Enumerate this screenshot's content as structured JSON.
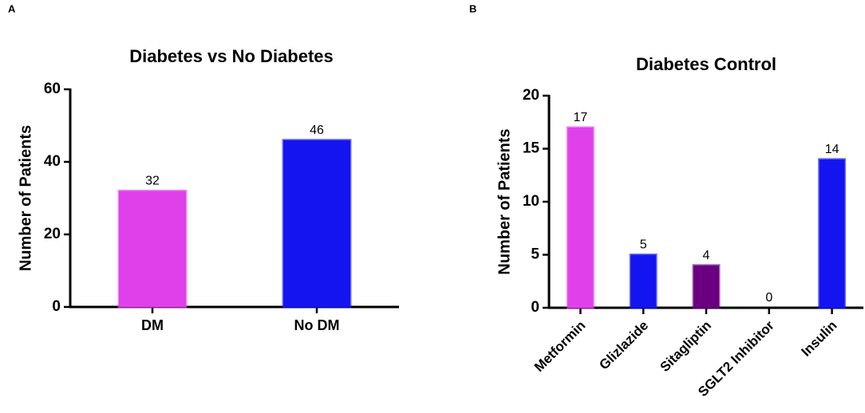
{
  "chart_data": [
    {
      "type": "bar",
      "panel_label": "A",
      "title": "Diabetes vs No Diabetes",
      "y_label": "Number of Patients",
      "categories": [
        "DM",
        "No DM"
      ],
      "values": [
        32,
        46
      ],
      "colors": [
        "#e040ea",
        "#1414f0"
      ],
      "ylim": [
        0,
        60
      ],
      "yticks": [
        0,
        20,
        40,
        60
      ],
      "grid": false
    },
    {
      "type": "bar",
      "panel_label": "B",
      "title": "Diabetes Control",
      "y_label": "Number of Patients",
      "categories": [
        "Metformin",
        "Glizlazide",
        "Sitagliptin",
        "SGLT2 Inhibitor",
        "Insulin"
      ],
      "values": [
        17,
        5,
        4,
        0,
        14
      ],
      "colors": [
        "#e040ea",
        "#1414f0",
        "#6a0080",
        "#1414f0",
        "#1414f0"
      ],
      "ylim": [
        0,
        20
      ],
      "yticks": [
        0,
        5,
        10,
        15,
        20
      ],
      "grid": false
    }
  ]
}
